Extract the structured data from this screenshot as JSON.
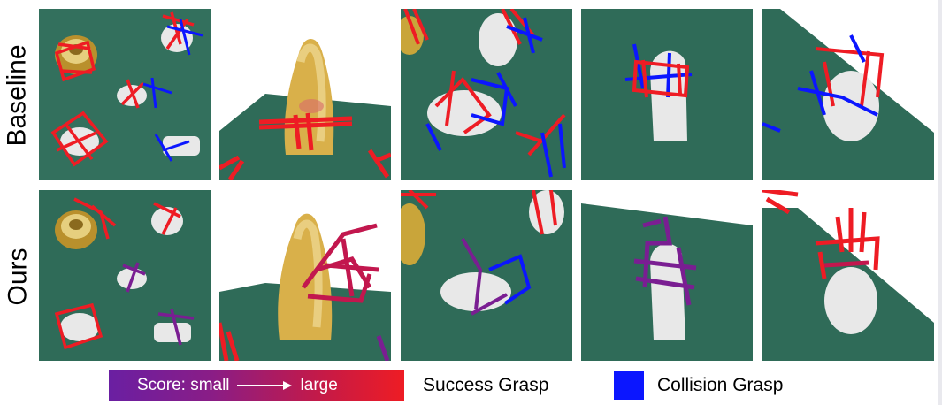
{
  "rows": {
    "baseline_label": "Baseline",
    "ours_label": "Ours"
  },
  "legend": {
    "score_small": "Score: small",
    "score_large": "large",
    "success_label": "Success Grasp",
    "collision_label": "Collision Grasp"
  },
  "colors": {
    "table": "#2f6b58",
    "success_red": "#ee1c24",
    "collision_blue": "#0b16ff",
    "score_low_purple": "#6a1fa2",
    "object_white": "#e8e8e8",
    "object_gold": "#c9a53a"
  },
  "icons": {
    "arrow": "right-arrow-icon"
  }
}
